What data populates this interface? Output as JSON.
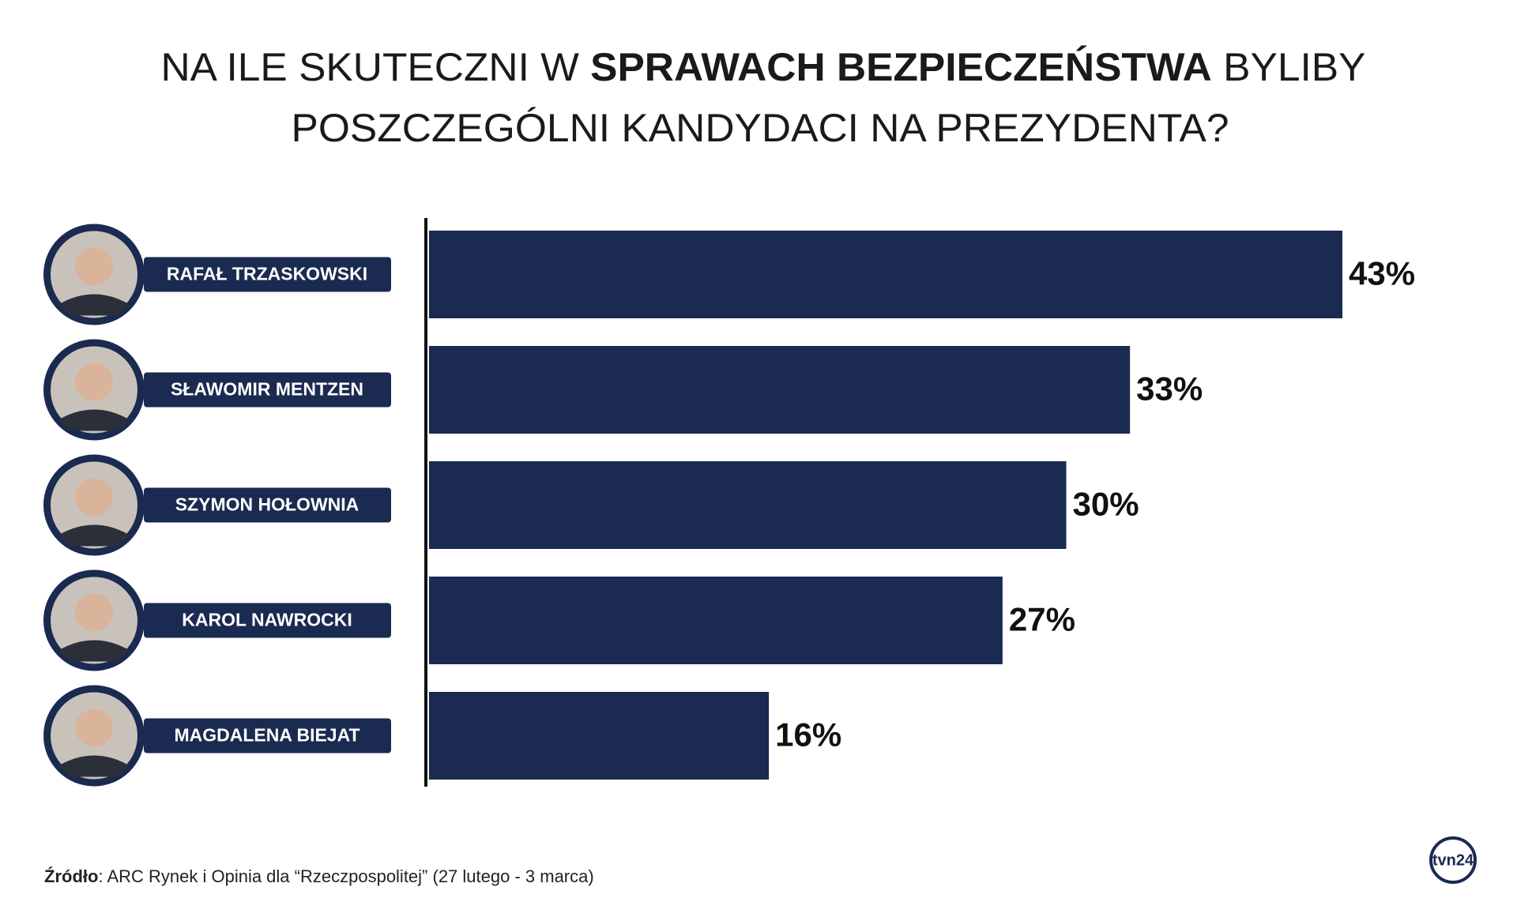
{
  "chart_data": {
    "type": "hbar",
    "title": [
      "NA ILE SKUTECZNI W",
      "SPRAWACH BEZPIECZEŃSTWA",
      "BYLIBY",
      "POSZCZEGÓLNI KANDYDACI NA PREZYDENTA?"
    ],
    "categories": [
      "RAFAŁ TRZASKOWSKI",
      "SŁAWOMIR MENTZEN",
      "SZYMON HOŁOWNIA",
      "KAROL NAWROCKI",
      "MAGDALENA BIEJAT"
    ],
    "values": [
      43,
      33,
      30,
      27,
      16
    ],
    "value_labels": [
      "43%",
      "33%",
      "30%",
      "27%",
      "16%"
    ],
    "color": "#1a2a50",
    "source_label": "Źródło",
    "source_text": ": ARC Rynek i Opinia dla “Rzeczpospolitej” (27 lutego - 3 marca)",
    "logo": "tvn24"
  }
}
